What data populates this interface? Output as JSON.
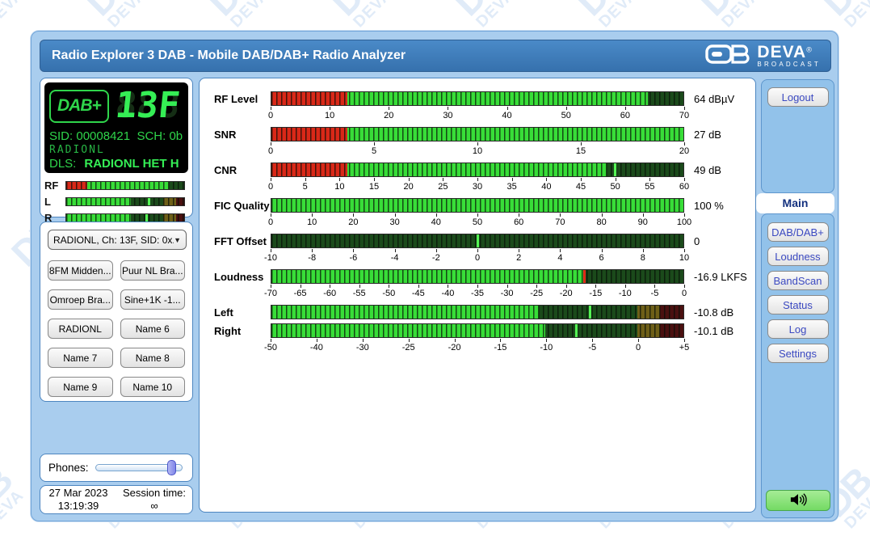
{
  "header": {
    "title": "Radio Explorer 3 DAB - Mobile DAB/DAB+ Radio Analyzer",
    "logo": {
      "db": "DB",
      "brand": "DEVA",
      "reg": "®",
      "sub": "BROADCAST"
    }
  },
  "watermark": {
    "db": "DB",
    "brand": "DEVA"
  },
  "lcd": {
    "badge": "DAB+",
    "channel": "13F",
    "ghost": "888",
    "sid_label": "SID:",
    "sid": "00008421",
    "sch_label": "SCH:",
    "sch": "0b",
    "service": "RADIONL",
    "dls_label": "DLS:",
    "dls": "RADIONL HET H"
  },
  "palette": {
    "lit_green": "#38dd38",
    "unlit_green": "#1b4a1b",
    "lit_red": "#d92818",
    "unlit_red": "#4a1010",
    "unlit_yellow": "#6e5f18",
    "peak_green": "#55f555",
    "peak_red": "#e02818"
  },
  "mini_meters": [
    {
      "label": "RF",
      "segments": [
        {
          "a": 0,
          "b": 0.18,
          "c": "lit_red"
        },
        {
          "a": 0.18,
          "b": 0.87,
          "c": "lit_green"
        },
        {
          "a": 0.87,
          "b": 1,
          "c": "unlit_green"
        }
      ],
      "marks": []
    },
    {
      "label": "L",
      "segments": [
        {
          "a": 0,
          "b": 0.55,
          "c": "lit_green"
        },
        {
          "a": 0.55,
          "b": 0.82,
          "c": "unlit_green"
        },
        {
          "a": 0.82,
          "b": 0.93,
          "c": "unlit_yellow"
        },
        {
          "a": 0.93,
          "b": 1,
          "c": "unlit_red"
        }
      ],
      "marks": [
        {
          "f": 0.7,
          "c": "peak_green"
        }
      ]
    },
    {
      "label": "R",
      "segments": [
        {
          "a": 0,
          "b": 0.55,
          "c": "lit_green"
        },
        {
          "a": 0.55,
          "b": 0.82,
          "c": "unlit_green"
        },
        {
          "a": 0.82,
          "b": 0.93,
          "c": "unlit_yellow"
        },
        {
          "a": 0.93,
          "b": 1,
          "c": "unlit_red"
        }
      ],
      "marks": [
        {
          "f": 0.68,
          "c": "peak_green"
        }
      ]
    }
  ],
  "tuner": {
    "selected": "RADIONL, Ch: 13F, SID: 0x...",
    "caret": "▼"
  },
  "presets": [
    "8FM Midden...",
    "Puur NL Bra...",
    "Omroep Bra...",
    "Sine+1K -1...",
    "RADIONL",
    "Name 6",
    "Name 7",
    "Name 8",
    "Name 9",
    "Name 10"
  ],
  "phones": {
    "label": "Phones:",
    "value_pct": 83
  },
  "session": {
    "date": "27 Mar 2023",
    "time": "13:19:39",
    "label": "Session time:",
    "value": "∞"
  },
  "meters": [
    {
      "id": "rf-level",
      "label": "RF Level",
      "value": "64 dBµV",
      "min": 0,
      "max": 70,
      "reading": 64,
      "segments": [
        {
          "a": 0,
          "b": 0.185,
          "c": "lit_red"
        },
        {
          "a": 0.185,
          "b": 0.914,
          "c": "lit_green"
        },
        {
          "a": 0.914,
          "b": 1,
          "c": "unlit_green"
        }
      ],
      "marks": [],
      "ticks": [
        {
          "f": 0,
          "t": "0"
        },
        {
          "f": 0.1429,
          "t": "10"
        },
        {
          "f": 0.2857,
          "t": "20"
        },
        {
          "f": 0.4286,
          "t": "30"
        },
        {
          "f": 0.5714,
          "t": "40"
        },
        {
          "f": 0.7143,
          "t": "50"
        },
        {
          "f": 0.8571,
          "t": "60"
        },
        {
          "f": 1,
          "t": "70"
        }
      ]
    },
    {
      "id": "snr",
      "label": "SNR",
      "value": "27 dB",
      "min": 0,
      "max": 20,
      "reading": 27,
      "segments": [
        {
          "a": 0,
          "b": 0.185,
          "c": "lit_red"
        },
        {
          "a": 0.185,
          "b": 1,
          "c": "lit_green"
        }
      ],
      "marks": [],
      "ticks": [
        {
          "f": 0,
          "t": "0"
        },
        {
          "f": 0.25,
          "t": "5"
        },
        {
          "f": 0.5,
          "t": "10"
        },
        {
          "f": 0.75,
          "t": "15"
        },
        {
          "f": 1,
          "t": "20"
        }
      ]
    },
    {
      "id": "cnr",
      "label": "CNR",
      "value": "49 dB",
      "min": 0,
      "max": 60,
      "reading": 49,
      "segments": [
        {
          "a": 0,
          "b": 0.185,
          "c": "lit_red"
        },
        {
          "a": 0.185,
          "b": 0.813,
          "c": "lit_green"
        },
        {
          "a": 0.813,
          "b": 1,
          "c": "unlit_green"
        }
      ],
      "marks": [
        {
          "f": 0.833,
          "c": "peak_green"
        }
      ],
      "ticks": [
        {
          "f": 0,
          "t": "0"
        },
        {
          "f": 0.0833,
          "t": "5"
        },
        {
          "f": 0.1667,
          "t": "10"
        },
        {
          "f": 0.25,
          "t": "15"
        },
        {
          "f": 0.3333,
          "t": "20"
        },
        {
          "f": 0.4167,
          "t": "25"
        },
        {
          "f": 0.5,
          "t": "30"
        },
        {
          "f": 0.5833,
          "t": "35"
        },
        {
          "f": 0.6667,
          "t": "40"
        },
        {
          "f": 0.75,
          "t": "45"
        },
        {
          "f": 0.8333,
          "t": "50"
        },
        {
          "f": 0.9167,
          "t": "55"
        },
        {
          "f": 1,
          "t": "60"
        }
      ]
    },
    {
      "id": "fic-quality",
      "label": "FIC Quality",
      "value": "100 %",
      "min": 0,
      "max": 100,
      "reading": 100,
      "segments": [
        {
          "a": 0,
          "b": 1,
          "c": "lit_green"
        }
      ],
      "marks": [],
      "ticks": [
        {
          "f": 0,
          "t": "0"
        },
        {
          "f": 0.1,
          "t": "10"
        },
        {
          "f": 0.2,
          "t": "20"
        },
        {
          "f": 0.3,
          "t": "30"
        },
        {
          "f": 0.4,
          "t": "40"
        },
        {
          "f": 0.5,
          "t": "50"
        },
        {
          "f": 0.6,
          "t": "60"
        },
        {
          "f": 0.7,
          "t": "70"
        },
        {
          "f": 0.8,
          "t": "80"
        },
        {
          "f": 0.9,
          "t": "90"
        },
        {
          "f": 1,
          "t": "100"
        }
      ]
    },
    {
      "id": "fft-offset",
      "label": "FFT Offset",
      "value": "0",
      "min": -10,
      "max": 10,
      "reading": 0,
      "segments": [
        {
          "a": 0,
          "b": 1,
          "c": "unlit_green"
        }
      ],
      "marks": [
        {
          "f": 0.5,
          "c": "peak_green"
        }
      ],
      "ticks": [
        {
          "f": 0,
          "t": "-10"
        },
        {
          "f": 0.1,
          "t": "-8"
        },
        {
          "f": 0.2,
          "t": "-6"
        },
        {
          "f": 0.3,
          "t": "-4"
        },
        {
          "f": 0.4,
          "t": "-2"
        },
        {
          "f": 0.5,
          "t": "0"
        },
        {
          "f": 0.6,
          "t": "2"
        },
        {
          "f": 0.7,
          "t": "4"
        },
        {
          "f": 0.8,
          "t": "6"
        },
        {
          "f": 0.9,
          "t": "8"
        },
        {
          "f": 1,
          "t": "10"
        }
      ]
    },
    {
      "id": "loudness",
      "label": "Loudness",
      "value": "-16.9 LKFS",
      "min": -70,
      "max": 0,
      "reading": -16.9,
      "segments": [
        {
          "a": 0,
          "b": 0.759,
          "c": "lit_green"
        },
        {
          "a": 0.759,
          "b": 1,
          "c": "unlit_green"
        }
      ],
      "marks": [
        {
          "f": 0.759,
          "c": "peak_red"
        }
      ],
      "ticks": [
        {
          "f": 0,
          "t": "-70"
        },
        {
          "f": 0.0714,
          "t": "-65"
        },
        {
          "f": 0.1429,
          "t": "-60"
        },
        {
          "f": 0.2143,
          "t": "-55"
        },
        {
          "f": 0.2857,
          "t": "-50"
        },
        {
          "f": 0.3571,
          "t": "-45"
        },
        {
          "f": 0.4286,
          "t": "-40"
        },
        {
          "f": 0.5,
          "t": "-35"
        },
        {
          "f": 0.5714,
          "t": "-30"
        },
        {
          "f": 0.6429,
          "t": "-25"
        },
        {
          "f": 0.7143,
          "t": "-20"
        },
        {
          "f": 0.7857,
          "t": "-15"
        },
        {
          "f": 0.8571,
          "t": "-10"
        },
        {
          "f": 0.9286,
          "t": "-5"
        },
        {
          "f": 1,
          "t": "0"
        }
      ]
    },
    {
      "id": "left",
      "label": "Left",
      "value": "-10.8 dB",
      "min": -50,
      "max": 5,
      "reading": -10.8,
      "segments": [
        {
          "a": 0,
          "b": 0.649,
          "c": "lit_green"
        },
        {
          "a": 0.649,
          "b": 0.889,
          "c": "unlit_green"
        },
        {
          "a": 0.889,
          "b": 0.944,
          "c": "unlit_yellow"
        },
        {
          "a": 0.944,
          "b": 1,
          "c": "unlit_red"
        }
      ],
      "marks": [
        {
          "f": 0.772,
          "c": "peak_green"
        }
      ],
      "ticks": []
    },
    {
      "id": "right",
      "label": "Right",
      "value": "-10.1 dB",
      "min": -50,
      "max": 5,
      "reading": -10.1,
      "segments": [
        {
          "a": 0,
          "b": 0.664,
          "c": "lit_green"
        },
        {
          "a": 0.664,
          "b": 0.889,
          "c": "unlit_green"
        },
        {
          "a": 0.889,
          "b": 0.944,
          "c": "unlit_yellow"
        },
        {
          "a": 0.944,
          "b": 1,
          "c": "unlit_red"
        }
      ],
      "marks": [
        {
          "f": 0.74,
          "c": "peak_green"
        }
      ],
      "ticks": [
        {
          "f": 0,
          "t": "-50"
        },
        {
          "f": 0.1111,
          "t": "-40"
        },
        {
          "f": 0.2222,
          "t": "-30"
        },
        {
          "f": 0.3333,
          "t": "-25"
        },
        {
          "f": 0.4444,
          "t": "-20"
        },
        {
          "f": 0.5556,
          "t": "-15"
        },
        {
          "f": 0.6667,
          "t": "-10"
        },
        {
          "f": 0.7778,
          "t": "-5"
        },
        {
          "f": 0.8889,
          "t": "0"
        },
        {
          "f": 1,
          "t": "+5"
        }
      ]
    }
  ],
  "sidebar": {
    "logout_label": "Logout",
    "tabs": [
      {
        "label": "Main",
        "active": true
      },
      {
        "label": "DAB/DAB+"
      },
      {
        "label": "Loudness"
      },
      {
        "label": "BandScan"
      },
      {
        "label": "Status"
      },
      {
        "label": "Log"
      },
      {
        "label": "Settings"
      }
    ],
    "speaker_icon": "speaker-loud-icon"
  }
}
